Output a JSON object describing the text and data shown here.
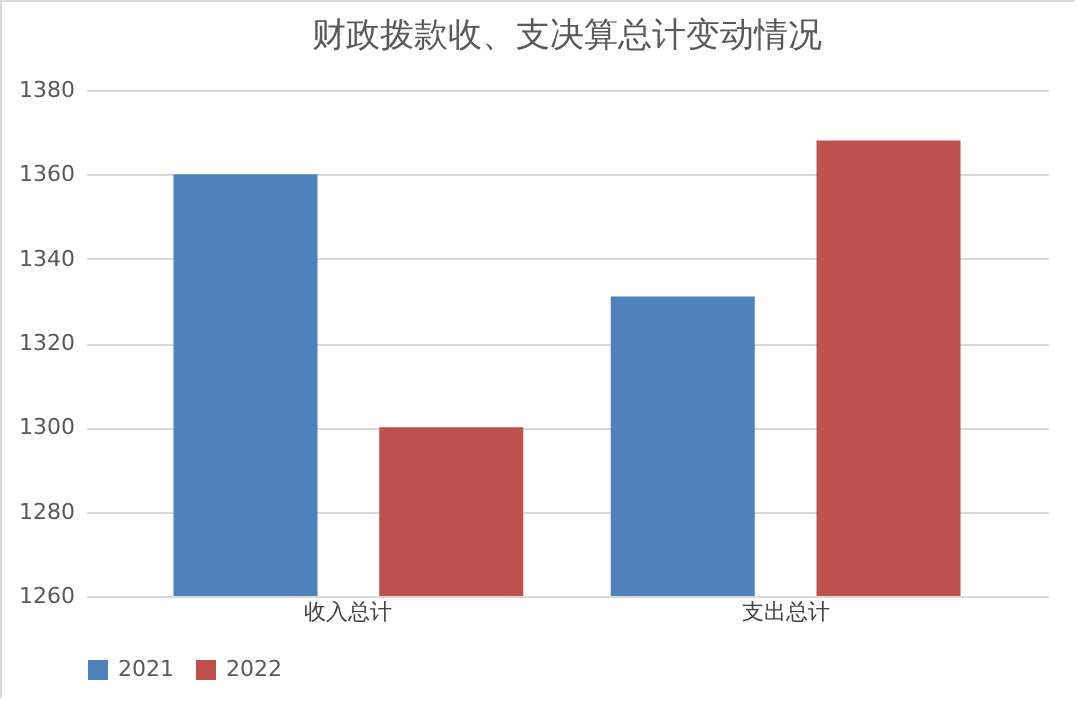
{
  "chart_data": {
    "type": "bar",
    "title": "财政拨款收、支决算总计变动情况",
    "categories": [
      "收入总计",
      "支出总计"
    ],
    "series": [
      {
        "name": "2021",
        "color": "#4f81bd",
        "values": [
          1360,
          1331
        ]
      },
      {
        "name": "2022",
        "color": "#c0504d",
        "values": [
          1300,
          1368
        ]
      }
    ],
    "ylim": [
      1260,
      1380
    ],
    "yticks": [
      1260,
      1280,
      1300,
      1320,
      1340,
      1360,
      1380
    ],
    "grid": "y",
    "legend": "bottom"
  }
}
